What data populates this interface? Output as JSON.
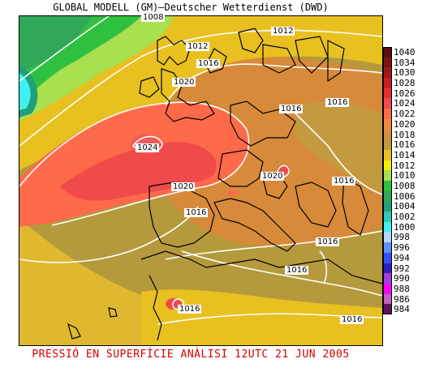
{
  "header": {
    "title": "GLOBAL MODELL (GM)—Deutscher Wetterdienst (DWD)"
  },
  "footer": {
    "caption": "PRESSIÓ EN SUPERFÍCIE   ANÀLISI 12UTC 21 JUN 2005"
  },
  "map": {
    "isobar_labels": [
      "1008",
      "1012",
      "1012",
      "1016",
      "1020",
      "1016",
      "1016",
      "1024",
      "1020",
      "1020",
      "1016",
      "1016",
      "1016",
      "1016",
      "1016",
      "1016"
    ]
  },
  "legend": {
    "items": [
      {
        "label": "1040",
        "color": "#5a0e0e"
      },
      {
        "label": "1034",
        "color": "#7b1414"
      },
      {
        "label": "1030",
        "color": "#a01919"
      },
      {
        "label": "1028",
        "color": "#c82020"
      },
      {
        "label": "1026",
        "color": "#e03030"
      },
      {
        "label": "1024",
        "color": "#f04a4a"
      },
      {
        "label": "1022",
        "color": "#ff6a4a"
      },
      {
        "label": "1020",
        "color": "#f08a3a"
      },
      {
        "label": "1018",
        "color": "#d29040"
      },
      {
        "label": "1016",
        "color": "#c09a3a"
      },
      {
        "label": "1014",
        "color": "#e8c020"
      },
      {
        "label": "1012",
        "color": "#f0f000"
      },
      {
        "label": "1010",
        "color": "#a8e050"
      },
      {
        "label": "1008",
        "color": "#30c040"
      },
      {
        "label": "1006",
        "color": "#30a858"
      },
      {
        "label": "1004",
        "color": "#20a078"
      },
      {
        "label": "1002",
        "color": "#30c8c0"
      },
      {
        "label": "1000",
        "color": "#40f0f0"
      },
      {
        "label": "998",
        "color": "#b0d8ff"
      },
      {
        "label": "996",
        "color": "#6090ff"
      },
      {
        "label": "994",
        "color": "#3050ff"
      },
      {
        "label": "992",
        "color": "#3020c0"
      },
      {
        "label": "990",
        "color": "#a040e0"
      },
      {
        "label": "988",
        "color": "#ff00ff"
      },
      {
        "label": "986",
        "color": "#c060c0"
      },
      {
        "label": "984",
        "color": "#601060"
      }
    ]
  }
}
